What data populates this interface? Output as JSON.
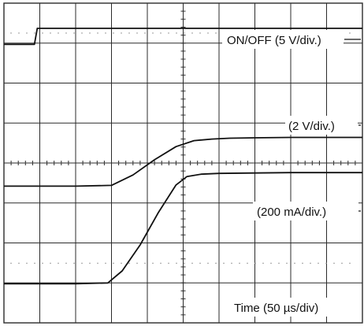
{
  "chart_data": {
    "type": "line",
    "title": "",
    "xlabel": "Time (50 µs/div)",
    "ylabel": "",
    "grid": true,
    "x_divisions": 10,
    "y_divisions": 8,
    "xlim_div": [
      0,
      10
    ],
    "ylim_div": [
      -4,
      4
    ],
    "series": [
      {
        "name": "ON/OFF (5 V/div.)",
        "x_div": [
          0,
          0.85,
          0.93,
          0.96,
          10
        ],
        "y_div": [
          2.97,
          2.97,
          3.37,
          3.37,
          3.37
        ]
      },
      {
        "name": "(2 V/div.)",
        "x_div": [
          0,
          1.0,
          2.0,
          3.0,
          3.6,
          4.2,
          4.8,
          5.3,
          5.8,
          6.3,
          7.0,
          8.0,
          9.0,
          10
        ],
        "y_div": [
          -0.58,
          -0.58,
          -0.58,
          -0.56,
          -0.3,
          0.08,
          0.41,
          0.56,
          0.6,
          0.62,
          0.63,
          0.64,
          0.64,
          0.64
        ]
      },
      {
        "name": "(200 mA/div.)",
        "x_div": [
          0,
          1.0,
          2.0,
          2.9,
          3.3,
          3.8,
          4.3,
          4.8,
          5.1,
          5.5,
          6.0,
          7.0,
          8.0,
          9.0,
          10
        ],
        "y_div": [
          -3.02,
          -3.02,
          -3.02,
          -3.0,
          -2.7,
          -2.05,
          -1.25,
          -0.55,
          -0.34,
          -0.28,
          -0.26,
          -0.25,
          -0.24,
          -0.24,
          -0.24
        ]
      }
    ],
    "annotations": [
      "ON/OFF (5 V/div.)",
      "(2 V/div.)",
      "(200 mA/div.)",
      "Time (50 µs/div)"
    ],
    "colors": {
      "trace": "#111111",
      "grid": "#2b2b2b",
      "ground_marker": "#9a9a9a",
      "background": "#ffffff"
    }
  }
}
